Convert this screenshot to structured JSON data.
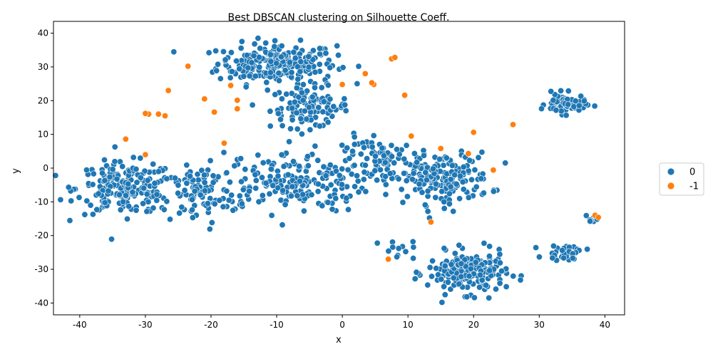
{
  "chart_data": {
    "type": "scatter",
    "title": "Best DBSCAN clustering on Silhouette Coeff.",
    "xlabel": "x",
    "ylabel": "y",
    "xlim": [
      -44,
      43
    ],
    "ylim": [
      -43.5,
      43.5
    ],
    "x_ticks": [
      -40,
      -30,
      -20,
      -10,
      0,
      10,
      20,
      30,
      40
    ],
    "y_ticks": [
      -40,
      -30,
      -20,
      -10,
      0,
      10,
      20,
      30,
      40
    ],
    "grid": false,
    "legend_position": "outside-right",
    "series": [
      {
        "name": "0",
        "color": "#1f77b4",
        "clusters": [
          {
            "center": [
              -10,
              31
            ],
            "spread": [
              6,
              4
            ],
            "count": 240
          },
          {
            "center": [
              -5,
              18
            ],
            "spread": [
              4,
              4
            ],
            "count": 110
          },
          {
            "center": [
              -33,
              -6
            ],
            "spread": [
              5,
              5
            ],
            "count": 210
          },
          {
            "center": [
              -22,
              -8
            ],
            "spread": [
              4,
              6
            ],
            "count": 90
          },
          {
            "center": [
              -8,
              -4
            ],
            "spread": [
              8,
              6
            ],
            "count": 200
          },
          {
            "center": [
              15,
              -3
            ],
            "spread": [
              5,
              5
            ],
            "count": 190
          },
          {
            "center": [
              6,
              3
            ],
            "spread": [
              4,
              4
            ],
            "count": 70
          },
          {
            "center": [
              19,
              -31
            ],
            "spread": [
              4,
              4
            ],
            "count": 200
          },
          {
            "center": [
              34,
              19
            ],
            "spread": [
              2,
              2
            ],
            "count": 75
          },
          {
            "center": [
              34,
              -25
            ],
            "spread": [
              2,
              1.5
            ],
            "count": 35
          },
          {
            "center": [
              38,
              -15
            ],
            "spread": [
              0.7,
              0.7
            ],
            "count": 8
          },
          {
            "center": [
              8,
              -24
            ],
            "spread": [
              2,
              2
            ],
            "count": 12
          }
        ]
      },
      {
        "name": "-1",
        "color": "#ff7f0e",
        "points": [
          [
            -23.5,
            30.2
          ],
          [
            -26.5,
            23
          ],
          [
            -29.5,
            16
          ],
          [
            -28,
            16
          ],
          [
            -30,
            16.2
          ],
          [
            -27,
            15.5
          ],
          [
            -33,
            8.6
          ],
          [
            -30,
            4
          ],
          [
            -21,
            20.5
          ],
          [
            -19.5,
            16.6
          ],
          [
            -18,
            7.4
          ],
          [
            -17,
            24.5
          ],
          [
            -16,
            17.6
          ],
          [
            -16,
            20.1
          ],
          [
            7.5,
            32.4
          ],
          [
            8,
            32.8
          ],
          [
            3.5,
            28
          ],
          [
            4.8,
            24.8
          ],
          [
            4.5,
            25.3
          ],
          [
            0,
            24.8
          ],
          [
            9.5,
            21.6
          ],
          [
            10.5,
            9.5
          ],
          [
            13.5,
            -16
          ],
          [
            15,
            5.8
          ],
          [
            19.2,
            4.3
          ],
          [
            20,
            10.6
          ],
          [
            26,
            12.9
          ],
          [
            23,
            -0.6
          ],
          [
            38.5,
            -14
          ],
          [
            39,
            -14.6
          ],
          [
            7,
            -27
          ]
        ]
      }
    ]
  }
}
